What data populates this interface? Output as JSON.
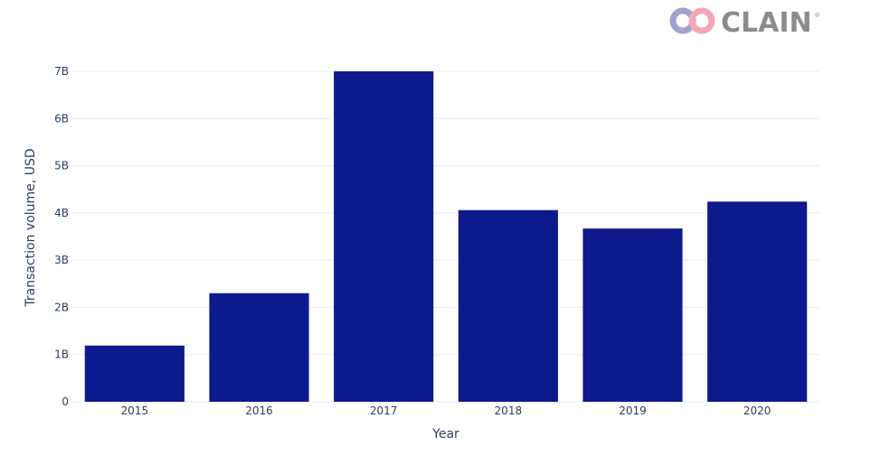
{
  "logo": {
    "text": "CLAIN",
    "registered_mark": "®",
    "icon": "chain-link-logo-icon",
    "colors": {
      "ring_left": "#9ea3c9",
      "ring_right": "#f4a7b9",
      "text": "#8c8c8c"
    }
  },
  "chart_data": {
    "type": "bar",
    "categories": [
      "2015",
      "2016",
      "2017",
      "2018",
      "2019",
      "2020"
    ],
    "values": [
      1.19,
      2.3,
      7.0,
      4.06,
      3.67,
      4.24
    ],
    "value_unit": "billion USD",
    "xlabel": "Year",
    "ylabel": "Transaction volume, USD",
    "ylim": [
      0,
      7
    ],
    "yticks": [
      {
        "value": 0,
        "label": "0"
      },
      {
        "value": 1,
        "label": "1B"
      },
      {
        "value": 2,
        "label": "2B"
      },
      {
        "value": 3,
        "label": "3B"
      },
      {
        "value": 4,
        "label": "4B"
      },
      {
        "value": 5,
        "label": "5B"
      },
      {
        "value": 6,
        "label": "6B"
      },
      {
        "value": 7,
        "label": "7B"
      }
    ],
    "grid": true,
    "bar_color": "#0d1a8e",
    "legend": "none"
  }
}
